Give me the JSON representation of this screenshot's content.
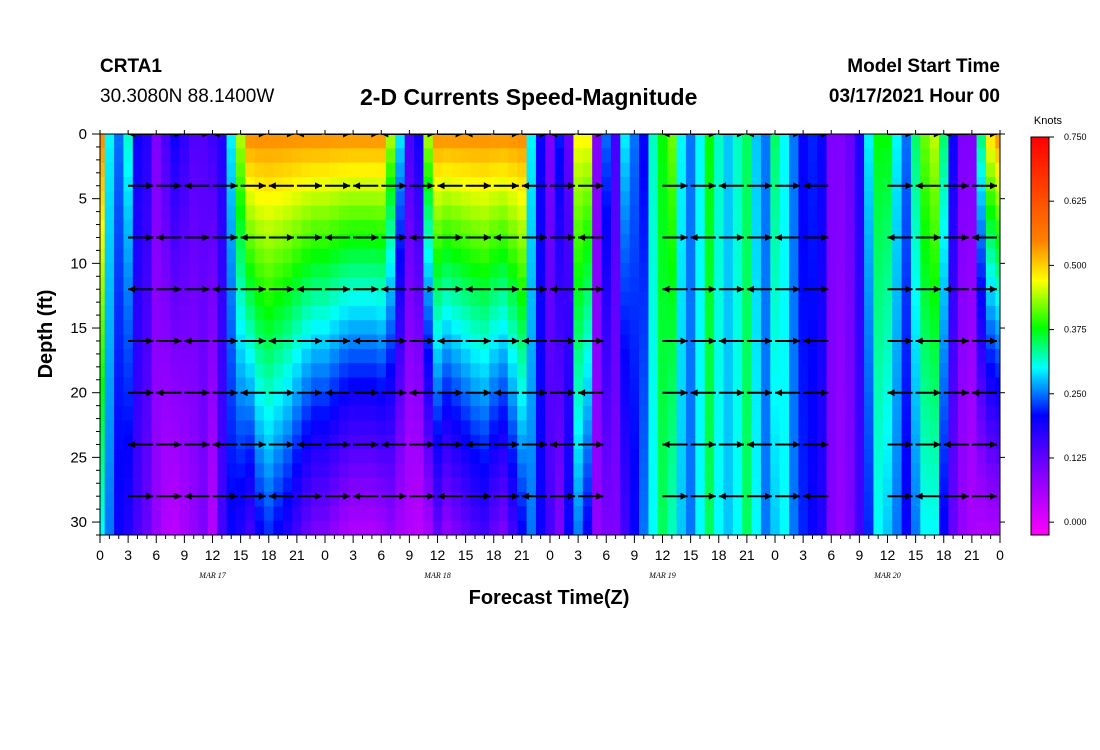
{
  "header": {
    "station_id": "CRTA1",
    "coordinates": "30.3080N 88.1400W",
    "model_start_label": "Model Start Time",
    "model_start_value": "03/17/2021 Hour 00"
  },
  "chart_data": {
    "type": "heatmap",
    "title": "2-D Currents Speed-Magnitude",
    "xlabel": "Forecast Time(Z)",
    "ylabel": "Depth (ft)",
    "x_hours_range": [
      0,
      96
    ],
    "y_range": [
      0,
      31
    ],
    "y_inverted": true,
    "x_tick_labels": [
      "0",
      "3",
      "6",
      "9",
      "12",
      "15",
      "18",
      "21",
      "0",
      "3",
      "6",
      "9",
      "12",
      "15",
      "18",
      "21",
      "0",
      "3",
      "6",
      "9",
      "12",
      "15",
      "18",
      "21",
      "0",
      "3",
      "6",
      "9",
      "12",
      "15",
      "18",
      "21",
      "0"
    ],
    "date_labels": [
      {
        "label": "MAR 17",
        "hour": 12
      },
      {
        "label": "MAR 18",
        "hour": 36
      },
      {
        "label": "MAR 19",
        "hour": 60
      },
      {
        "label": "MAR 20",
        "hour": 84
      }
    ],
    "y_ticks": [
      0,
      5,
      10,
      15,
      20,
      25,
      30
    ],
    "colorbar": {
      "title": "Knots",
      "tick_labels": [
        "0.750",
        "0.625",
        "0.500",
        "0.375",
        "0.250",
        "0.125",
        "0.000"
      ],
      "range": [
        -0.025,
        0.75
      ]
    },
    "vector_depths_ft": [
      0,
      4,
      8,
      12,
      16,
      20,
      24,
      28
    ],
    "arrow_columns_hours": [
      3,
      6,
      9,
      12,
      15,
      18,
      21,
      24,
      27,
      30,
      33,
      36,
      39,
      42,
      45,
      48,
      51,
      54,
      60,
      63,
      66,
      69,
      72,
      75,
      78,
      84,
      87,
      90,
      93,
      96
    ],
    "columns_hours": [
      0,
      1,
      2,
      3,
      4,
      5,
      6,
      7,
      8,
      9,
      10,
      11,
      12,
      13,
      14,
      15,
      16,
      17,
      18,
      19,
      20,
      21,
      22,
      23,
      24,
      25,
      26,
      27,
      28,
      29,
      30,
      31,
      32,
      33,
      34,
      35,
      36,
      37,
      38,
      39,
      40,
      41,
      42,
      43,
      44,
      45,
      46,
      47,
      48,
      49,
      50,
      51,
      52,
      53,
      54,
      55,
      56,
      57,
      58,
      59,
      60,
      61,
      62,
      63,
      64,
      65,
      66,
      67,
      68,
      69,
      70,
      71,
      72,
      73,
      74,
      75,
      76,
      77,
      78,
      79,
      80,
      81,
      82,
      83,
      84,
      85,
      86,
      87,
      88,
      89,
      90,
      91,
      92,
      93,
      94,
      95,
      96
    ],
    "surface_speed_knots": [
      0.55,
      0.3,
      0.25,
      0.32,
      0.2,
      0.18,
      0.1,
      0.15,
      0.2,
      0.17,
      0.14,
      0.14,
      0.16,
      0.18,
      0.3,
      0.45,
      0.55,
      0.55,
      0.55,
      0.55,
      0.55,
      0.55,
      0.55,
      0.55,
      0.55,
      0.55,
      0.55,
      0.55,
      0.55,
      0.55,
      0.55,
      0.45,
      0.3,
      0.15,
      0.2,
      0.45,
      0.55,
      0.55,
      0.55,
      0.55,
      0.55,
      0.55,
      0.55,
      0.55,
      0.55,
      0.55,
      0.3,
      0.2,
      0.1,
      0.22,
      0.12,
      0.48,
      0.48,
      0.1,
      0.25,
      0.15,
      0.3,
      0.25,
      0.2,
      0.32,
      0.38,
      0.42,
      0.3,
      0.25,
      0.3,
      0.38,
      0.32,
      0.28,
      0.32,
      0.35,
      0.28,
      0.25,
      0.35,
      0.3,
      0.25,
      0.2,
      0.22,
      0.2,
      0.1,
      0.1,
      0.12,
      0.18,
      0.3,
      0.38,
      0.38,
      0.3,
      0.25,
      0.35,
      0.42,
      0.45,
      0.35,
      0.2,
      0.1,
      0.1,
      0.35,
      0.5,
      0.55
    ],
    "bottom_speed_knots": [
      0.3,
      0.25,
      0.2,
      0.18,
      0.15,
      0.12,
      0.08,
      0.05,
      0.04,
      0.06,
      0.08,
      0.1,
      0.05,
      0.15,
      0.2,
      0.18,
      0.15,
      0.2,
      0.22,
      0.2,
      0.18,
      0.15,
      0.12,
      0.1,
      0.1,
      0.08,
      0.06,
      0.05,
      0.05,
      0.05,
      0.06,
      0.08,
      0.06,
      0.05,
      0.04,
      0.06,
      0.12,
      0.08,
      0.1,
      0.12,
      0.14,
      0.15,
      0.12,
      0.1,
      0.15,
      0.2,
      0.25,
      0.2,
      0.15,
      0.1,
      0.2,
      0.25,
      0.2,
      0.08,
      0.1,
      0.1,
      0.15,
      0.2,
      0.25,
      0.3,
      0.35,
      0.32,
      0.28,
      0.25,
      0.3,
      0.35,
      0.3,
      0.28,
      0.3,
      0.35,
      0.3,
      0.25,
      0.28,
      0.3,
      0.25,
      0.22,
      0.2,
      0.18,
      0.1,
      0.08,
      0.1,
      0.15,
      0.22,
      0.3,
      0.28,
      0.25,
      0.2,
      0.25,
      0.3,
      0.3,
      0.2,
      0.12,
      0.08,
      0.06,
      0.05,
      0.05,
      0.05
    ]
  }
}
